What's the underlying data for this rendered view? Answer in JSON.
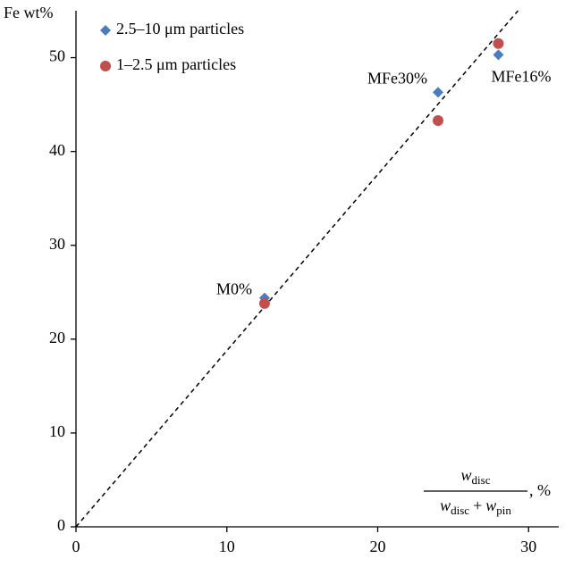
{
  "chart_data": {
    "type": "scatter",
    "y_label": "Fe wt%",
    "x_label": {
      "numerator": [
        "w",
        "disc"
      ],
      "denominator": [
        "w",
        "disc",
        "+",
        "w",
        "pin"
      ],
      "suffix": ", %"
    },
    "series": [
      {
        "name": "2.5–10 μm particles",
        "color": "#4a7cc0",
        "marker": "diamond",
        "x": [
          12.5,
          24,
          28
        ],
        "values": [
          24.4,
          46.3,
          50.3
        ]
      },
      {
        "name": "1–2.5 μm particles",
        "color": "#c0504d",
        "marker": "circle",
        "x": [
          12.5,
          24,
          28
        ],
        "values": [
          23.8,
          43.3,
          51.5
        ]
      }
    ],
    "point_labels": [
      "M0%",
      "MFe30%",
      "MFe16%"
    ],
    "reference_line": {
      "x": [
        0,
        29.3
      ],
      "y": [
        0,
        55
      ]
    },
    "xlim": [
      0,
      32
    ],
    "ylim": [
      0,
      55
    ],
    "xticks": [
      0,
      10,
      20,
      30
    ],
    "yticks": [
      0,
      10,
      20,
      30,
      40,
      50
    ],
    "legend": "top-left",
    "grid": false
  }
}
